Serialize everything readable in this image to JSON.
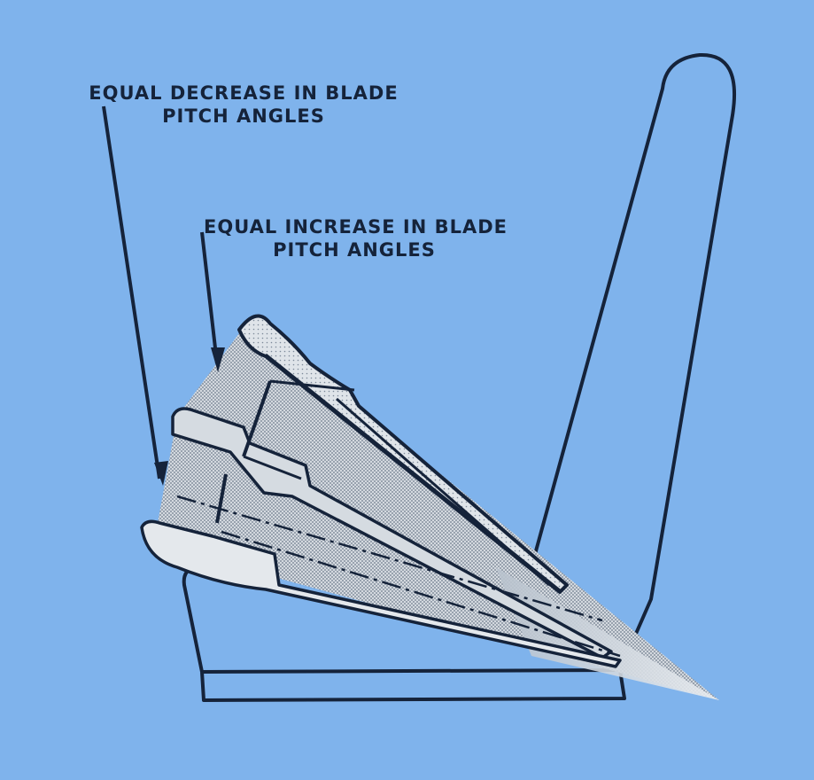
{
  "labels": {
    "decrease_line1": "EQUAL DECREASE IN BLADE",
    "decrease_line2": "PITCH ANGLES",
    "increase_line1": "EQUAL INCREASE IN BLADE",
    "increase_line2": "PITCH ANGLES"
  },
  "colors": {
    "background": "#7fb3ec",
    "ink": "#15233a",
    "blade_fill": "#c9cfd6",
    "blade_dark": "#9aa7b6",
    "highlight": "#e6ebf0"
  }
}
